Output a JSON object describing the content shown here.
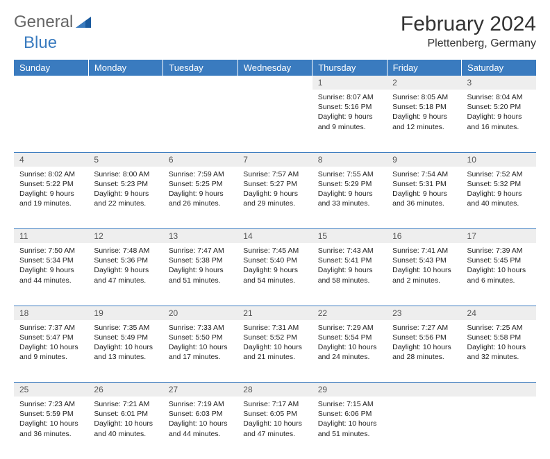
{
  "brand": {
    "part1": "General",
    "part2": "Blue",
    "accent_color": "#3a7bbf",
    "gray_color": "#666666"
  },
  "title": "February 2024",
  "location": "Plettenberg, Germany",
  "colors": {
    "header_bg": "#3a7bbf",
    "header_text": "#ffffff",
    "daynum_bg": "#eeeeee",
    "daynum_text": "#555555",
    "cell_text": "#222222",
    "rule": "#3a7bbf"
  },
  "day_names": [
    "Sunday",
    "Monday",
    "Tuesday",
    "Wednesday",
    "Thursday",
    "Friday",
    "Saturday"
  ],
  "weeks": [
    [
      null,
      null,
      null,
      null,
      {
        "n": "1",
        "sr": "8:07 AM",
        "ss": "5:16 PM",
        "dl": "9 hours and 9 minutes."
      },
      {
        "n": "2",
        "sr": "8:05 AM",
        "ss": "5:18 PM",
        "dl": "9 hours and 12 minutes."
      },
      {
        "n": "3",
        "sr": "8:04 AM",
        "ss": "5:20 PM",
        "dl": "9 hours and 16 minutes."
      }
    ],
    [
      {
        "n": "4",
        "sr": "8:02 AM",
        "ss": "5:22 PM",
        "dl": "9 hours and 19 minutes."
      },
      {
        "n": "5",
        "sr": "8:00 AM",
        "ss": "5:23 PM",
        "dl": "9 hours and 22 minutes."
      },
      {
        "n": "6",
        "sr": "7:59 AM",
        "ss": "5:25 PM",
        "dl": "9 hours and 26 minutes."
      },
      {
        "n": "7",
        "sr": "7:57 AM",
        "ss": "5:27 PM",
        "dl": "9 hours and 29 minutes."
      },
      {
        "n": "8",
        "sr": "7:55 AM",
        "ss": "5:29 PM",
        "dl": "9 hours and 33 minutes."
      },
      {
        "n": "9",
        "sr": "7:54 AM",
        "ss": "5:31 PM",
        "dl": "9 hours and 36 minutes."
      },
      {
        "n": "10",
        "sr": "7:52 AM",
        "ss": "5:32 PM",
        "dl": "9 hours and 40 minutes."
      }
    ],
    [
      {
        "n": "11",
        "sr": "7:50 AM",
        "ss": "5:34 PM",
        "dl": "9 hours and 44 minutes."
      },
      {
        "n": "12",
        "sr": "7:48 AM",
        "ss": "5:36 PM",
        "dl": "9 hours and 47 minutes."
      },
      {
        "n": "13",
        "sr": "7:47 AM",
        "ss": "5:38 PM",
        "dl": "9 hours and 51 minutes."
      },
      {
        "n": "14",
        "sr": "7:45 AM",
        "ss": "5:40 PM",
        "dl": "9 hours and 54 minutes."
      },
      {
        "n": "15",
        "sr": "7:43 AM",
        "ss": "5:41 PM",
        "dl": "9 hours and 58 minutes."
      },
      {
        "n": "16",
        "sr": "7:41 AM",
        "ss": "5:43 PM",
        "dl": "10 hours and 2 minutes."
      },
      {
        "n": "17",
        "sr": "7:39 AM",
        "ss": "5:45 PM",
        "dl": "10 hours and 6 minutes."
      }
    ],
    [
      {
        "n": "18",
        "sr": "7:37 AM",
        "ss": "5:47 PM",
        "dl": "10 hours and 9 minutes."
      },
      {
        "n": "19",
        "sr": "7:35 AM",
        "ss": "5:49 PM",
        "dl": "10 hours and 13 minutes."
      },
      {
        "n": "20",
        "sr": "7:33 AM",
        "ss": "5:50 PM",
        "dl": "10 hours and 17 minutes."
      },
      {
        "n": "21",
        "sr": "7:31 AM",
        "ss": "5:52 PM",
        "dl": "10 hours and 21 minutes."
      },
      {
        "n": "22",
        "sr": "7:29 AM",
        "ss": "5:54 PM",
        "dl": "10 hours and 24 minutes."
      },
      {
        "n": "23",
        "sr": "7:27 AM",
        "ss": "5:56 PM",
        "dl": "10 hours and 28 minutes."
      },
      {
        "n": "24",
        "sr": "7:25 AM",
        "ss": "5:58 PM",
        "dl": "10 hours and 32 minutes."
      }
    ],
    [
      {
        "n": "25",
        "sr": "7:23 AM",
        "ss": "5:59 PM",
        "dl": "10 hours and 36 minutes."
      },
      {
        "n": "26",
        "sr": "7:21 AM",
        "ss": "6:01 PM",
        "dl": "10 hours and 40 minutes."
      },
      {
        "n": "27",
        "sr": "7:19 AM",
        "ss": "6:03 PM",
        "dl": "10 hours and 44 minutes."
      },
      {
        "n": "28",
        "sr": "7:17 AM",
        "ss": "6:05 PM",
        "dl": "10 hours and 47 minutes."
      },
      {
        "n": "29",
        "sr": "7:15 AM",
        "ss": "6:06 PM",
        "dl": "10 hours and 51 minutes."
      },
      null,
      null
    ]
  ],
  "labels": {
    "sunrise": "Sunrise:",
    "sunset": "Sunset:",
    "daylight": "Daylight:"
  }
}
